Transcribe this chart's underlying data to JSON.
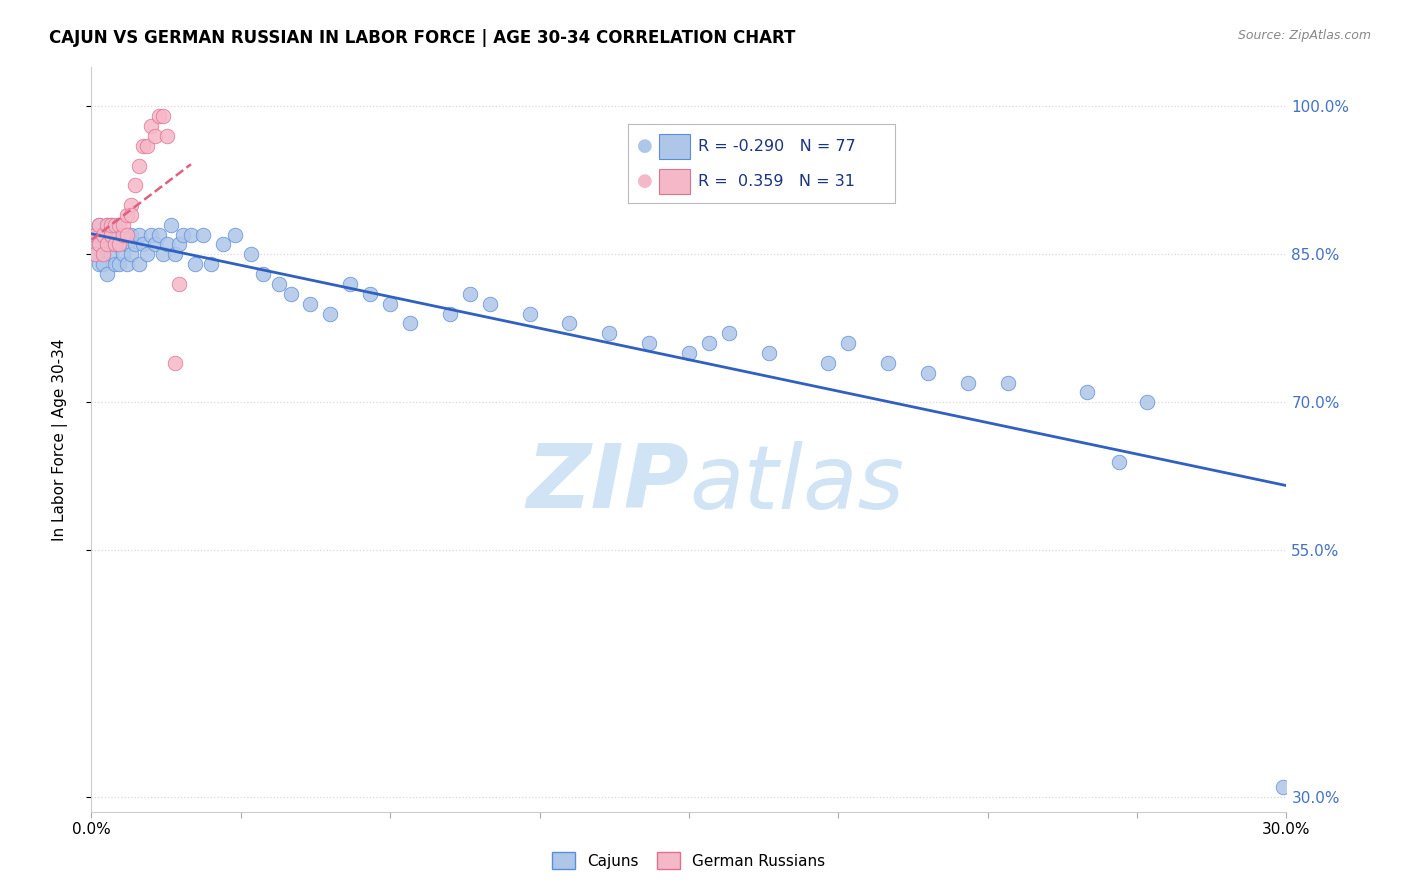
{
  "title": "CAJUN VS GERMAN RUSSIAN IN LABOR FORCE | AGE 30-34 CORRELATION CHART",
  "source": "Source: ZipAtlas.com",
  "ylabel": "In Labor Force | Age 30-34",
  "yticks": [
    0.3,
    0.55,
    0.7,
    0.85,
    1.0
  ],
  "ytick_labels": [
    "30.0%",
    "55.0%",
    "70.0%",
    "85.0%",
    "100.0%"
  ],
  "xmin": 0.0,
  "xmax": 0.3,
  "ymin": 0.285,
  "ymax": 1.04,
  "cajun_R": -0.29,
  "cajun_N": 77,
  "german_russian_R": 0.359,
  "german_russian_N": 31,
  "cajun_face_color": "#aec6e8",
  "cajun_edge_color": "#5b8dd9",
  "german_face_color": "#f5b8c8",
  "german_edge_color": "#e07090",
  "cajun_line_color": "#3060c0",
  "german_line_color": "#e06080",
  "grid_color": "#d8d8d8",
  "watermark_color": "#d0e4f5",
  "cajun_x": [
    0.001,
    0.001,
    0.002,
    0.002,
    0.002,
    0.003,
    0.003,
    0.003,
    0.004,
    0.004,
    0.004,
    0.005,
    0.005,
    0.005,
    0.006,
    0.006,
    0.006,
    0.007,
    0.007,
    0.007,
    0.008,
    0.008,
    0.009,
    0.009,
    0.01,
    0.01,
    0.011,
    0.012,
    0.012,
    0.013,
    0.014,
    0.015,
    0.016,
    0.017,
    0.018,
    0.019,
    0.02,
    0.021,
    0.022,
    0.023,
    0.025,
    0.026,
    0.028,
    0.03,
    0.033,
    0.036,
    0.04,
    0.043,
    0.047,
    0.05,
    0.055,
    0.06,
    0.065,
    0.07,
    0.075,
    0.08,
    0.09,
    0.095,
    0.1,
    0.11,
    0.12,
    0.13,
    0.14,
    0.15,
    0.155,
    0.16,
    0.17,
    0.185,
    0.19,
    0.2,
    0.21,
    0.22,
    0.23,
    0.25,
    0.265,
    0.258,
    0.299
  ],
  "cajun_y": [
    0.87,
    0.85,
    0.88,
    0.86,
    0.84,
    0.87,
    0.85,
    0.84,
    0.86,
    0.88,
    0.83,
    0.87,
    0.85,
    0.88,
    0.86,
    0.84,
    0.87,
    0.86,
    0.84,
    0.87,
    0.85,
    0.87,
    0.84,
    0.86,
    0.87,
    0.85,
    0.86,
    0.87,
    0.84,
    0.86,
    0.85,
    0.87,
    0.86,
    0.87,
    0.85,
    0.86,
    0.88,
    0.85,
    0.86,
    0.87,
    0.87,
    0.84,
    0.87,
    0.84,
    0.86,
    0.87,
    0.85,
    0.83,
    0.82,
    0.81,
    0.8,
    0.79,
    0.82,
    0.81,
    0.8,
    0.78,
    0.79,
    0.81,
    0.8,
    0.79,
    0.78,
    0.77,
    0.76,
    0.75,
    0.76,
    0.77,
    0.75,
    0.74,
    0.76,
    0.74,
    0.73,
    0.72,
    0.72,
    0.71,
    0.7,
    0.64,
    0.31
  ],
  "german_russian_x": [
    0.001,
    0.001,
    0.002,
    0.002,
    0.003,
    0.003,
    0.004,
    0.004,
    0.005,
    0.005,
    0.006,
    0.006,
    0.007,
    0.007,
    0.008,
    0.008,
    0.009,
    0.009,
    0.01,
    0.01,
    0.011,
    0.012,
    0.013,
    0.014,
    0.015,
    0.016,
    0.017,
    0.018,
    0.019,
    0.021,
    0.022
  ],
  "german_russian_y": [
    0.87,
    0.85,
    0.86,
    0.88,
    0.87,
    0.85,
    0.88,
    0.86,
    0.87,
    0.88,
    0.86,
    0.88,
    0.86,
    0.88,
    0.87,
    0.88,
    0.89,
    0.87,
    0.9,
    0.89,
    0.92,
    0.94,
    0.96,
    0.96,
    0.98,
    0.97,
    0.99,
    0.99,
    0.97,
    0.74,
    0.82
  ]
}
